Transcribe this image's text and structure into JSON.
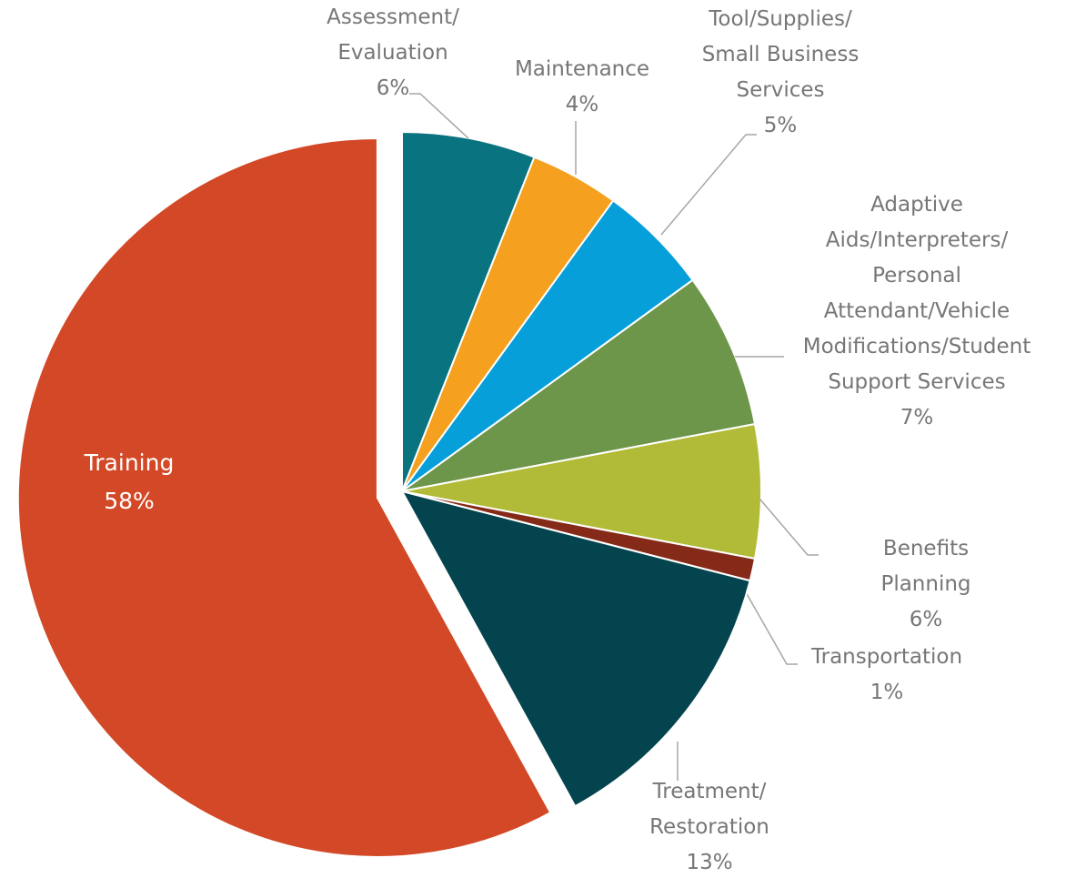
{
  "chart_data": {
    "type": "pie",
    "categories": [
      "Assessment/\nEvaluation",
      "Maintenance",
      "Tool/Supplies/\nSmall Business\nServices",
      "Adaptive\nAids/Interpreters/\nPersonal\nAttendant/Vehicle\nModifications/Student\nSupport Services",
      "Benefits Planning",
      "Transportation",
      "Treatment/\nRestoration",
      "Training"
    ],
    "values": [
      6,
      4,
      5,
      7,
      6,
      1,
      13,
      58
    ],
    "value_labels": [
      "6%",
      "4%",
      "5%",
      "7%",
      "6%",
      "1%",
      "13%",
      "58%"
    ],
    "colors": [
      "#0a7380",
      "#f5a01e",
      "#079fd9",
      "#6e964a",
      "#b2bb37",
      "#852a18",
      "#04444f",
      "#d34826"
    ]
  }
}
